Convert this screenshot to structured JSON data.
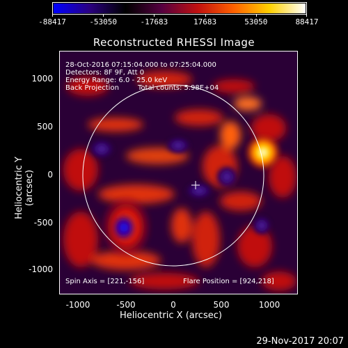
{
  "colorbar": {
    "ticks": [
      "-88417",
      "-53050",
      "-17683",
      "17683",
      "53050",
      "88417"
    ],
    "colors": [
      "#0000ff",
      "#2a0080",
      "#000000",
      "#550040",
      "#c01010",
      "#ff6000",
      "#ffd000",
      "#ffffff"
    ]
  },
  "title": "Reconstructed RHESSI Image",
  "annotations": {
    "time_range": "28-Oct-2016 07:15:04.000 to 07:25:04.000",
    "detectors": "Detectors: 8F 9F, Att 0",
    "energy": "Energy Range: 6.0 - 25.0 keV",
    "method": "Back Projection",
    "total_counts": "Total counts: 5.98E+04",
    "spin_axis": "Spin Axis = [221,-156]",
    "flare_position": "Flare Position = [924,218]"
  },
  "axes": {
    "xlabel": "Heliocentric X (arcsec)",
    "ylabel": "Heliocentric Y (arcsec)",
    "xticks": [
      "-1000",
      "-500",
      "0",
      "500",
      "1000"
    ],
    "yticks": [
      "1000",
      "500",
      "0",
      "-500",
      "-1000"
    ]
  },
  "footer": {
    "date": "29-Nov-2017 20:07"
  }
}
